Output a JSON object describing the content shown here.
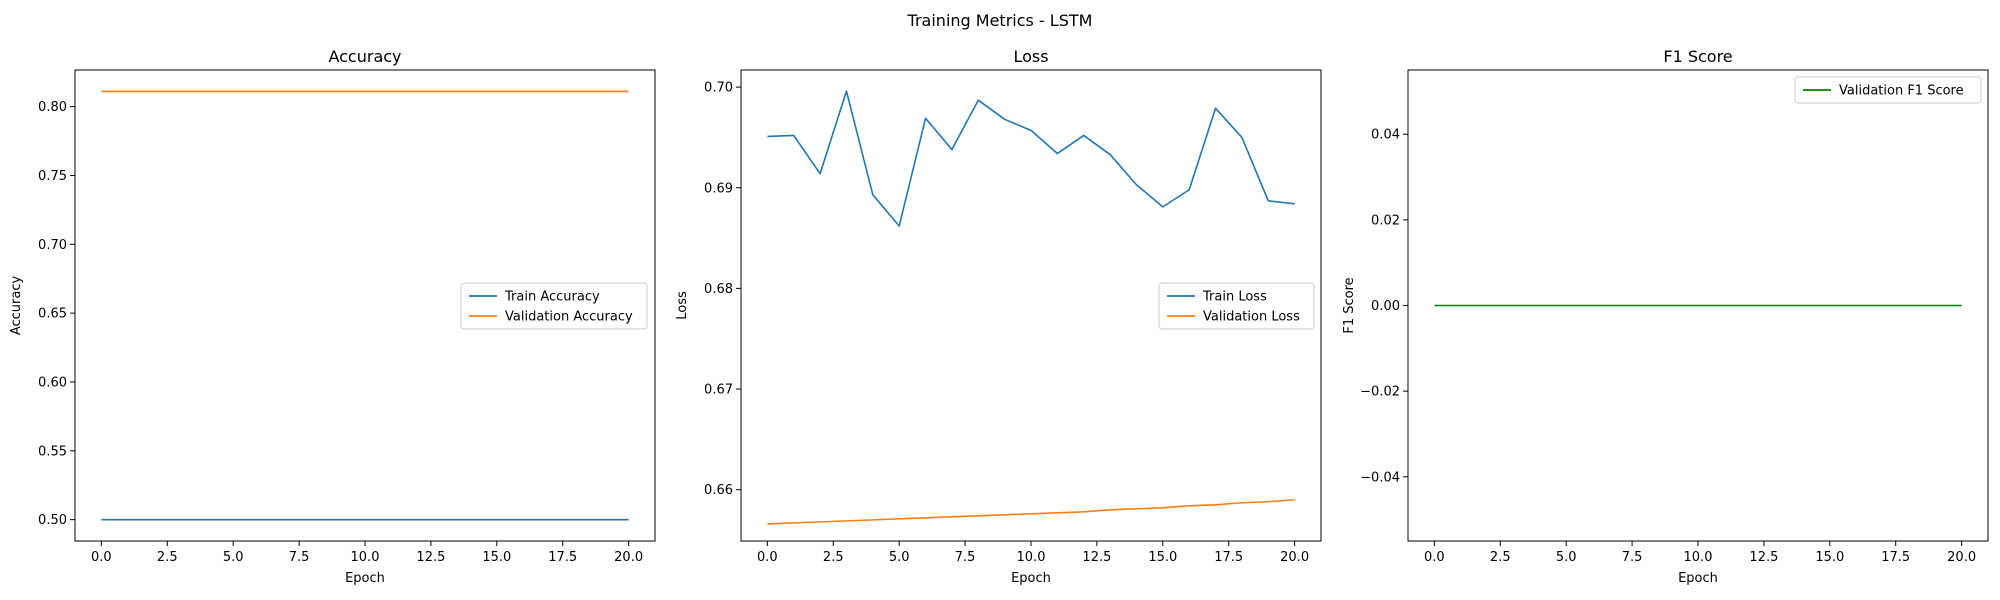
{
  "suptitle": "Training Metrics - LSTM",
  "chart_data": [
    {
      "type": "line",
      "title": "Accuracy",
      "xlabel": "Epoch",
      "ylabel": "Accuracy",
      "xlim": [
        -1,
        21
      ],
      "ylim": [
        0.4845,
        0.8266
      ],
      "xticks": [
        0,
        2.5,
        5,
        7.5,
        10,
        12.5,
        15,
        17.5,
        20
      ],
      "xtick_labels": [
        "0.0",
        "2.5",
        "5.0",
        "7.5",
        "10.0",
        "12.5",
        "15.0",
        "17.5",
        "20.0"
      ],
      "yticks": [
        0.5,
        0.55,
        0.6,
        0.65,
        0.7,
        0.75,
        0.8
      ],
      "ytick_labels": [
        "0.50",
        "0.55",
        "0.60",
        "0.65",
        "0.70",
        "0.75",
        "0.80"
      ],
      "legend_position": "center-right",
      "x": [
        0,
        1,
        2,
        3,
        4,
        5,
        6,
        7,
        8,
        9,
        10,
        11,
        12,
        13,
        14,
        15,
        16,
        17,
        18,
        19,
        20
      ],
      "series": [
        {
          "name": "Train Accuracy",
          "color": "#1f77b4",
          "values": [
            0.5,
            0.5,
            0.5,
            0.5,
            0.5,
            0.5,
            0.5,
            0.5,
            0.5,
            0.5,
            0.5,
            0.5,
            0.5,
            0.5,
            0.5,
            0.5,
            0.5,
            0.5,
            0.5,
            0.5,
            0.5
          ]
        },
        {
          "name": "Validation Accuracy",
          "color": "#ff7f0e",
          "values": [
            0.811,
            0.811,
            0.811,
            0.811,
            0.811,
            0.811,
            0.811,
            0.811,
            0.811,
            0.811,
            0.811,
            0.811,
            0.811,
            0.811,
            0.811,
            0.811,
            0.811,
            0.811,
            0.811,
            0.811,
            0.811
          ]
        }
      ]
    },
    {
      "type": "line",
      "title": "Loss",
      "xlabel": "Epoch",
      "ylabel": "Loss",
      "xlim": [
        -1,
        21
      ],
      "ylim": [
        0.6549,
        0.7017
      ],
      "xticks": [
        0,
        2.5,
        5,
        7.5,
        10,
        12.5,
        15,
        17.5,
        20
      ],
      "xtick_labels": [
        "0.0",
        "2.5",
        "5.0",
        "7.5",
        "10.0",
        "12.5",
        "15.0",
        "17.5",
        "20.0"
      ],
      "yticks": [
        0.66,
        0.67,
        0.68,
        0.69,
        0.7
      ],
      "ytick_labels": [
        "0.66",
        "0.67",
        "0.68",
        "0.69",
        "0.70"
      ],
      "legend_position": "center-right",
      "x": [
        0,
        1,
        2,
        3,
        4,
        5,
        6,
        7,
        8,
        9,
        10,
        11,
        12,
        13,
        14,
        15,
        16,
        17,
        18,
        19,
        20
      ],
      "series": [
        {
          "name": "Train Loss",
          "color": "#1f77b4",
          "values": [
            0.6951,
            0.6952,
            0.6914,
            0.6996,
            0.6893,
            0.6862,
            0.6969,
            0.6938,
            0.6987,
            0.6968,
            0.6957,
            0.6934,
            0.6952,
            0.6933,
            0.6903,
            0.6881,
            0.6898,
            0.6979,
            0.695,
            0.6887,
            0.6884
          ]
        },
        {
          "name": "Validation Loss",
          "color": "#ff7f0e",
          "values": [
            0.6566,
            0.6567,
            0.6568,
            0.6569,
            0.657,
            0.6571,
            0.6572,
            0.6573,
            0.6574,
            0.6575,
            0.6576,
            0.6577,
            0.6578,
            0.658,
            0.6581,
            0.6582,
            0.6584,
            0.6585,
            0.6587,
            0.6588,
            0.659
          ]
        }
      ]
    },
    {
      "type": "line",
      "title": "F1 Score",
      "xlabel": "Epoch",
      "ylabel": "F1 Score",
      "xlim": [
        -1,
        21
      ],
      "ylim": [
        -0.055,
        0.055
      ],
      "xticks": [
        0,
        2.5,
        5,
        7.5,
        10,
        12.5,
        15,
        17.5,
        20
      ],
      "xtick_labels": [
        "0.0",
        "2.5",
        "5.0",
        "7.5",
        "10.0",
        "12.5",
        "15.0",
        "17.5",
        "20.0"
      ],
      "yticks": [
        -0.04,
        -0.02,
        0.0,
        0.02,
        0.04
      ],
      "ytick_labels": [
        "−0.04",
        "−0.02",
        "0.00",
        "0.02",
        "0.04"
      ],
      "legend_position": "top-right",
      "x": [
        0,
        1,
        2,
        3,
        4,
        5,
        6,
        7,
        8,
        9,
        10,
        11,
        12,
        13,
        14,
        15,
        16,
        17,
        18,
        19,
        20
      ],
      "series": [
        {
          "name": "Validation F1 Score",
          "color": "#008000",
          "values": [
            0,
            0,
            0,
            0,
            0,
            0,
            0,
            0,
            0,
            0,
            0,
            0,
            0,
            0,
            0,
            0,
            0,
            0,
            0,
            0,
            0
          ]
        }
      ]
    }
  ]
}
